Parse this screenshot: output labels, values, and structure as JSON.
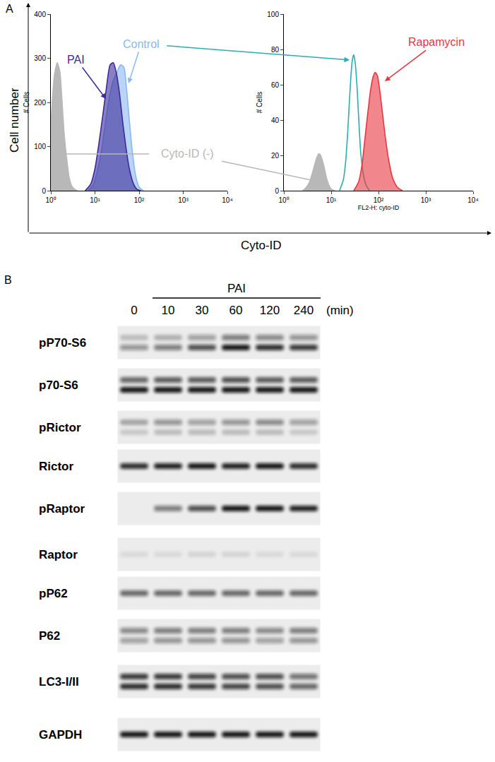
{
  "figure_labels": [
    "A",
    "B"
  ],
  "panel_a": {
    "x_label": "Cyto-ID",
    "y_label": "Cell number"
  },
  "chart_data": [
    {
      "type": "area",
      "log": "x",
      "grid": false,
      "xlim": [
        1,
        10000
      ],
      "xticks": [
        {
          "value": 1,
          "label": "10⁰"
        },
        {
          "value": 10,
          "label": "10¹"
        },
        {
          "value": 100,
          "label": "10²"
        },
        {
          "value": 1000,
          "label": "10³"
        },
        {
          "value": 10000,
          "label": "10⁴"
        }
      ],
      "ylim": [
        0,
        400
      ],
      "yticks": [
        0,
        100,
        200,
        300,
        400
      ],
      "y_label": "# Cells",
      "series": [
        {
          "name": "Cyto-ID (-)",
          "color": "#b8b8b8",
          "type": "area",
          "x": [
            1,
            1.2,
            1.4,
            1.6,
            1.8,
            2,
            2.3,
            2.6,
            3,
            3.5,
            4
          ],
          "values": [
            150,
            260,
            290,
            270,
            200,
            130,
            70,
            30,
            10,
            3,
            0
          ]
        },
        {
          "name": "Control",
          "color": "#8ab8f0",
          "type": "area",
          "x": [
            7,
            9,
            11,
            14,
            17,
            21,
            26,
            32,
            38,
            45,
            52,
            60,
            70,
            85,
            100,
            125
          ],
          "values": [
            0,
            12,
            40,
            90,
            150,
            210,
            250,
            270,
            285,
            280,
            230,
            160,
            90,
            30,
            8,
            0
          ]
        },
        {
          "name": "PAI",
          "color": "#3a2a9a",
          "type": "area",
          "x": [
            6,
            8,
            10,
            12,
            15,
            18,
            22,
            26,
            30,
            36,
            42,
            50,
            60,
            75,
            90,
            110
          ],
          "values": [
            0,
            15,
            50,
            100,
            170,
            230,
            285,
            290,
            270,
            220,
            160,
            100,
            50,
            15,
            3,
            0
          ]
        }
      ]
    },
    {
      "type": "area",
      "log": "x",
      "grid": false,
      "xlim": [
        1,
        10000
      ],
      "xticks": [
        {
          "value": 1,
          "label": "10⁰"
        },
        {
          "value": 10,
          "label": "10¹"
        },
        {
          "value": 100,
          "label": "10²"
        },
        {
          "value": 1000,
          "label": "10³"
        },
        {
          "value": 10000,
          "label": "10⁴"
        }
      ],
      "ylim": [
        0,
        100
      ],
      "yticks": [
        0,
        20,
        40,
        60,
        80,
        100
      ],
      "x_label": "FL2-H: cyto-ID",
      "y_label": "# Cells",
      "series": [
        {
          "name": "Cyto-ID (-)",
          "color": "#b8b8b8",
          "type": "area",
          "x": [
            2.5,
            3,
            3.5,
            4,
            4.5,
            5,
            5.5,
            6,
            7,
            8,
            9,
            10,
            12
          ],
          "values": [
            0,
            2,
            5,
            10,
            15,
            19,
            21,
            20,
            14,
            7,
            3,
            1,
            0
          ]
        },
        {
          "name": "Control",
          "color": "#2aaeb0",
          "type": "line",
          "x": [
            15,
            18,
            20,
            22,
            24,
            26,
            28,
            30,
            32,
            35,
            38,
            42,
            48,
            55,
            65
          ],
          "values": [
            0,
            6,
            15,
            30,
            48,
            64,
            74,
            77,
            73,
            60,
            42,
            22,
            9,
            3,
            0
          ]
        },
        {
          "name": "Rapamycin",
          "color": "#e8363f",
          "type": "area",
          "x": [
            30,
            38,
            45,
            52,
            60,
            68,
            76,
            85,
            95,
            105,
            120,
            140,
            165,
            200,
            250,
            320
          ],
          "values": [
            0,
            5,
            15,
            30,
            45,
            57,
            64,
            67,
            65,
            58,
            45,
            30,
            17,
            7,
            2,
            0
          ]
        }
      ]
    }
  ],
  "blot": {
    "treatment": "PAI",
    "time_unit": "(min)",
    "lanes": [
      0,
      10,
      30,
      60,
      120,
      240
    ],
    "rows": [
      {
        "label": "pP70-S6",
        "bands": [
          [
            0.2,
            0.25,
            0.35,
            0.5,
            0.45,
            0.4
          ],
          [
            0.4,
            0.5,
            0.7,
            0.95,
            0.85,
            0.8
          ]
        ]
      },
      {
        "label": "p70-S6",
        "bands": [
          [
            0.6,
            0.65,
            0.65,
            0.7,
            0.65,
            0.65
          ],
          [
            0.95,
            0.95,
            0.95,
            0.95,
            0.95,
            0.95
          ]
        ]
      },
      {
        "label": "pRictor",
        "bands": [
          [
            0.3,
            0.4,
            0.35,
            0.4,
            0.45,
            0.35
          ],
          [
            0.15,
            0.2,
            0.2,
            0.2,
            0.2,
            0.15
          ]
        ]
      },
      {
        "label": "Rictor",
        "bands": [
          [
            0.85,
            0.9,
            0.95,
            0.9,
            0.95,
            0.85
          ]
        ]
      },
      {
        "label": "pRaptor",
        "bands": [
          [
            0,
            0.5,
            0.7,
            0.95,
            0.95,
            0.9
          ]
        ]
      },
      {
        "label": "Raptor",
        "bands": [
          [
            0.08,
            0.08,
            0.1,
            0.1,
            0.08,
            0.08
          ]
        ]
      },
      {
        "label": "pP62",
        "bands": [
          [
            0.6,
            0.6,
            0.6,
            0.6,
            0.6,
            0.6
          ]
        ]
      },
      {
        "label": "P62",
        "bands": [
          [
            0.45,
            0.5,
            0.5,
            0.5,
            0.45,
            0.5
          ],
          [
            0.35,
            0.4,
            0.4,
            0.4,
            0.35,
            0.4
          ]
        ]
      },
      {
        "label": "LC3-I/II",
        "bands": [
          [
            0.8,
            0.8,
            0.75,
            0.7,
            0.7,
            0.55
          ],
          [
            0.85,
            0.85,
            0.8,
            0.75,
            0.7,
            0.6
          ]
        ]
      },
      {
        "label": "GAPDH",
        "bands": [
          [
            0.95,
            0.95,
            0.95,
            0.95,
            0.95,
            0.95
          ]
        ]
      }
    ]
  }
}
